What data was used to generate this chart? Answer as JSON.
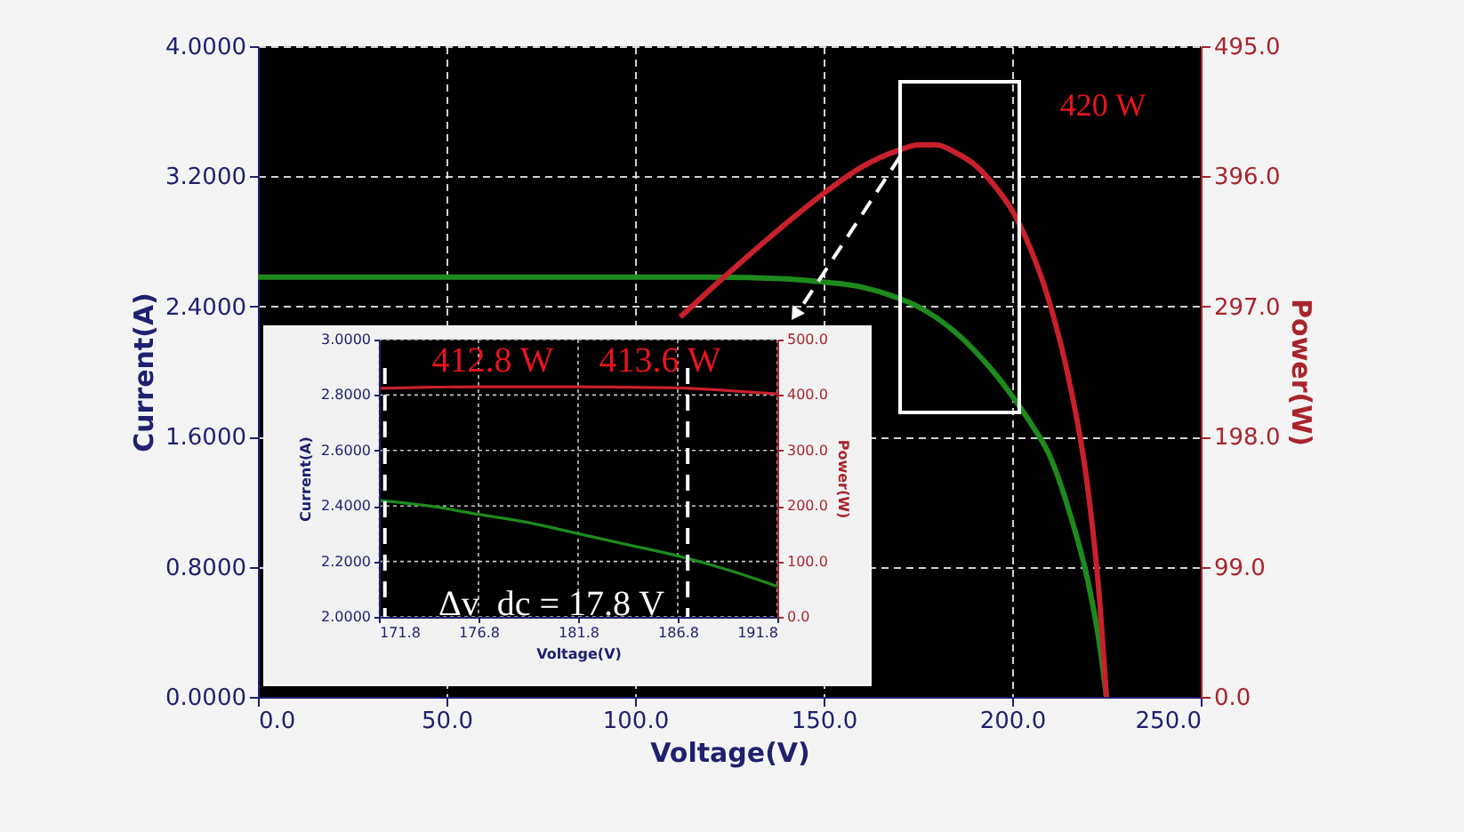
{
  "chart_data": [
    {
      "type": "line",
      "xlabel": "Voltage(V)",
      "ylabel": "Current(A)",
      "y2label": "Power(W)",
      "x": [
        0,
        10,
        20,
        40,
        60,
        80,
        100,
        112,
        120,
        140,
        150,
        160,
        170,
        175,
        180,
        185,
        190,
        195,
        200,
        205,
        210,
        215,
        220,
        223,
        225
      ],
      "series": [
        {
          "color": "#1e8a1e",
          "axis": "y",
          "values": [
            2.58,
            2.58,
            2.58,
            2.58,
            2.58,
            2.58,
            2.58,
            2.58,
            2.58,
            2.57,
            2.55,
            2.52,
            2.45,
            2.4,
            2.33,
            2.24,
            2.13,
            2.0,
            1.85,
            1.68,
            1.48,
            1.15,
            0.72,
            0.35,
            0.0
          ]
        },
        {
          "color": "#c8202c",
          "axis": "y2",
          "values": [
            null,
            null,
            null,
            null,
            null,
            null,
            null,
            289,
            310,
            360,
            383,
            403,
            416,
            420,
            420,
            414,
            405,
            390,
            370,
            340,
            299,
            242,
            160,
            80,
            0
          ]
        }
      ],
      "xlim": [
        0,
        250
      ],
      "xticks": [
        {
          "value": 0,
          "label": "0.0"
        },
        {
          "value": 50,
          "label": "50.0"
        },
        {
          "value": 100,
          "label": "100.0"
        },
        {
          "value": 150,
          "label": "150.0"
        },
        {
          "value": 200,
          "label": "200.0"
        },
        {
          "value": 250,
          "label": "250.0"
        }
      ],
      "ylim": [
        0,
        4
      ],
      "yticks": [
        {
          "value": 0,
          "label": "0.0000"
        },
        {
          "value": 0.8,
          "label": "0.8000"
        },
        {
          "value": 1.6,
          "label": "1.6000"
        },
        {
          "value": 2.4,
          "label": "2.4000"
        },
        {
          "value": 3.2,
          "label": "3.2000"
        },
        {
          "value": 4,
          "label": "4.0000"
        }
      ],
      "y2lim": [
        0,
        495
      ],
      "y2ticks": [
        {
          "value": 0,
          "label": "0.0"
        },
        {
          "value": 99,
          "label": "99.0"
        },
        {
          "value": 198,
          "label": "198.0"
        },
        {
          "value": 297,
          "label": "297.0"
        },
        {
          "value": 396,
          "label": "396.0"
        },
        {
          "value": 495,
          "label": "495.0"
        }
      ],
      "grid": true,
      "annotations": [
        "420 W"
      ]
    },
    {
      "type": "line",
      "xlabel": "Voltage(V)",
      "ylabel": "Current(A)",
      "y2label": "Power(W)",
      "x": [
        171.8,
        174.3,
        176.8,
        179.3,
        181.8,
        184.3,
        186.8,
        189.3,
        191.8
      ],
      "series": [
        {
          "color": "#1e8a1e",
          "axis": "y",
          "values": [
            2.42,
            2.4,
            2.37,
            2.34,
            2.3,
            2.26,
            2.22,
            2.17,
            2.11
          ]
        },
        {
          "color": "#c8202c",
          "axis": "y2",
          "values": [
            412,
            414,
            415,
            415,
            415,
            414,
            413,
            408,
            402
          ]
        }
      ],
      "xlim": [
        171.8,
        191.8
      ],
      "xticks": [
        171.8,
        176.8,
        181.8,
        186.8,
        191.8
      ],
      "ylim": [
        2,
        3
      ],
      "yticks": [
        {
          "value": 2,
          "label": "2.0000"
        },
        {
          "value": 2.2,
          "label": "2.2000"
        },
        {
          "value": 2.4,
          "label": "2.4000"
        },
        {
          "value": 2.6,
          "label": "2.6000"
        },
        {
          "value": 2.8,
          "label": "2.8000"
        },
        {
          "value": 3,
          "label": "3.0000"
        }
      ],
      "y2lim": [
        0,
        500
      ],
      "y2ticks": [
        {
          "value": 0,
          "label": "0.0"
        },
        {
          "value": 100,
          "label": "100.0"
        },
        {
          "value": 200,
          "label": "200.0"
        },
        {
          "value": 300,
          "label": "300.0"
        },
        {
          "value": 400,
          "label": "400.0"
        },
        {
          "value": 500,
          "label": "500.0"
        }
      ],
      "grid": true,
      "ref_lines": [
        {
          "axis": "x",
          "value": 172.1,
          "color": "#ffffff",
          "line_style": "dashed"
        },
        {
          "axis": "x",
          "value": 187.3,
          "color": "#ffffff",
          "line_style": "dashed"
        }
      ],
      "annotations": [
        "412.8 W",
        "413.6 W",
        "Δv_dc = 17.8 V"
      ]
    }
  ]
}
